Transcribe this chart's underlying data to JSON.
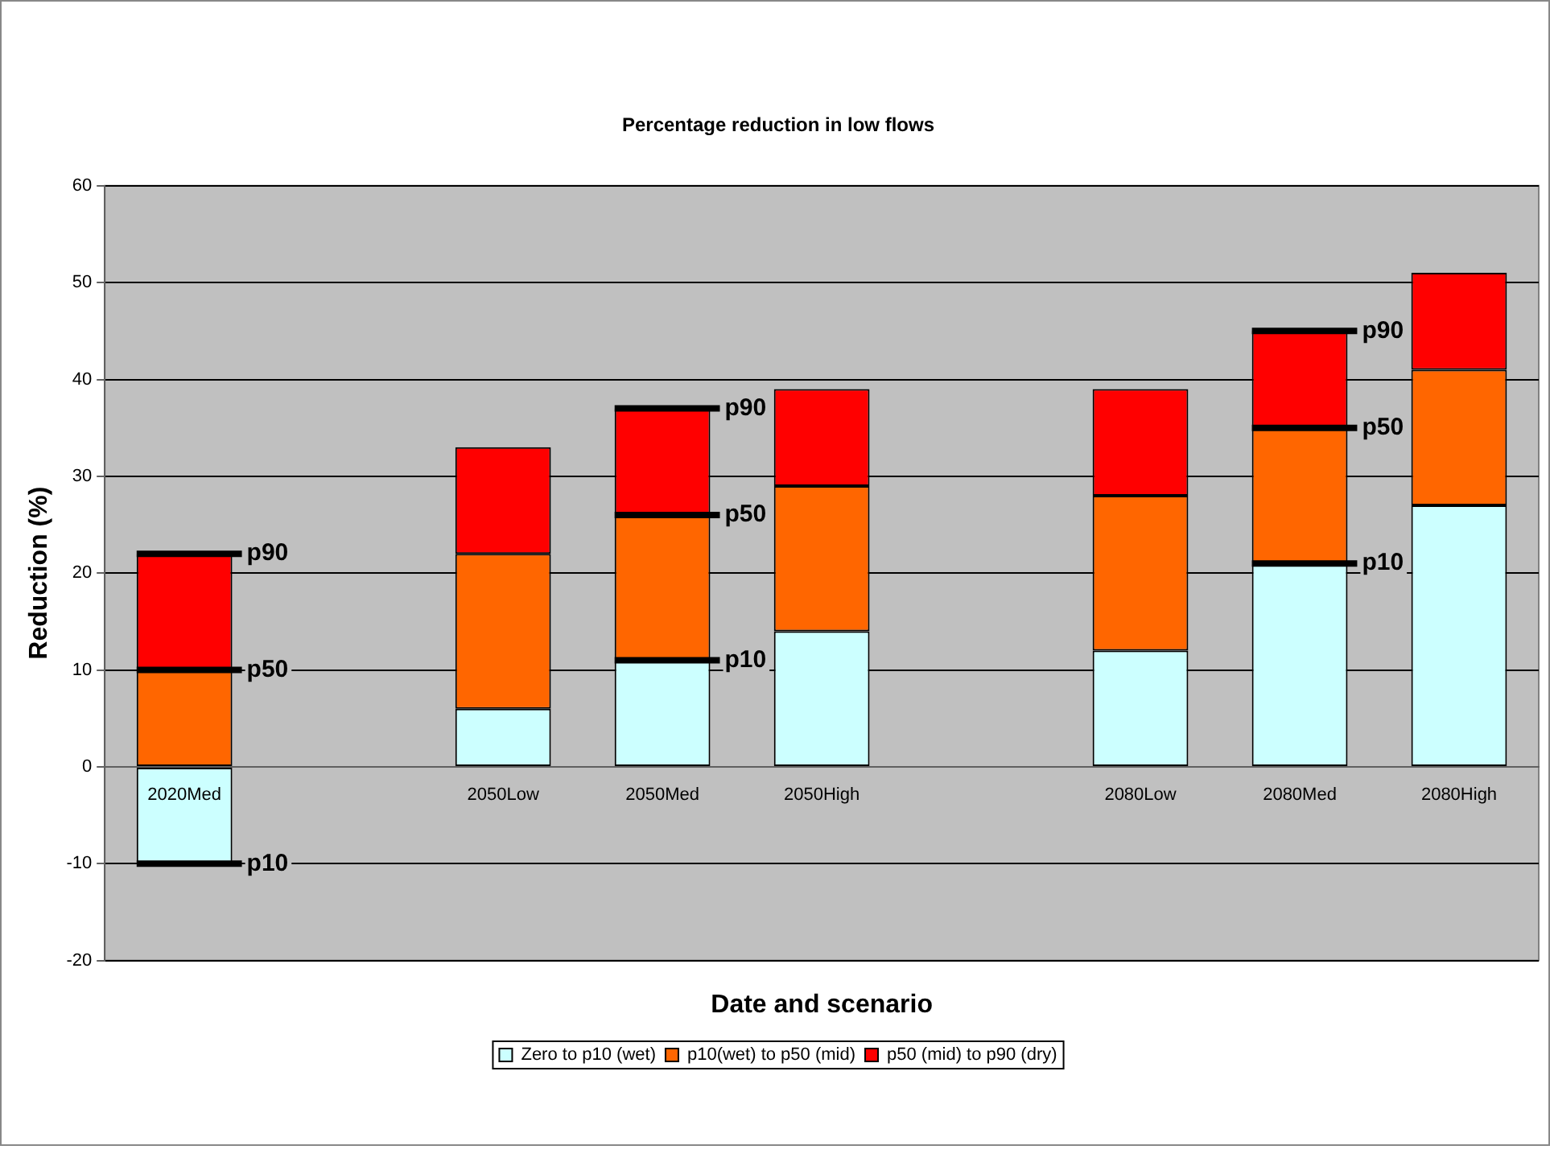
{
  "chart_data": {
    "type": "bar",
    "title": "Percentage reduction in low flows",
    "xlabel": "Date and scenario",
    "ylabel": "Reduction (%)",
    "categories": [
      "2020Med",
      null,
      "2050Low",
      "2050Med",
      "2050High",
      null,
      "2080Low",
      "2080Med",
      "2080High"
    ],
    "series": [
      {
        "name": "Zero to p10 (wet)",
        "color": "#ccffff",
        "values": [
          -10,
          null,
          6,
          11,
          14,
          null,
          12,
          21,
          27
        ]
      },
      {
        "name": "p10(wet) to p50 (mid)",
        "color": "#ff6600",
        "values": [
          10,
          null,
          16,
          15,
          15,
          null,
          16,
          14,
          14
        ]
      },
      {
        "name": "p50 (mid) to p90 (dry)",
        "color": "#ff0000",
        "values": [
          12,
          null,
          11,
          11,
          10,
          null,
          11,
          10,
          10
        ]
      }
    ],
    "stacked": true,
    "ylim": [
      -20,
      60
    ],
    "yticks": [
      -20,
      -10,
      0,
      10,
      20,
      30,
      40,
      50,
      60
    ],
    "grid": "y",
    "legend": "bottom",
    "annotations": [
      {
        "text": "p90",
        "x": "2020Med",
        "y": 22
      },
      {
        "text": "p50",
        "x": "2020Med",
        "y": 10
      },
      {
        "text": "p10",
        "x": "2020Med",
        "y": -10
      },
      {
        "text": "p90",
        "x": "2050Med",
        "y": 37
      },
      {
        "text": "p50",
        "x": "2050Med",
        "y": 26
      },
      {
        "text": "p10",
        "x": "2050Med",
        "y": 11
      },
      {
        "text": "p90",
        "x": "2080Med",
        "y": 45
      },
      {
        "text": "p50",
        "x": "2080Med",
        "y": 35
      },
      {
        "text": "p10",
        "x": "2080Med",
        "y": 21
      }
    ]
  }
}
